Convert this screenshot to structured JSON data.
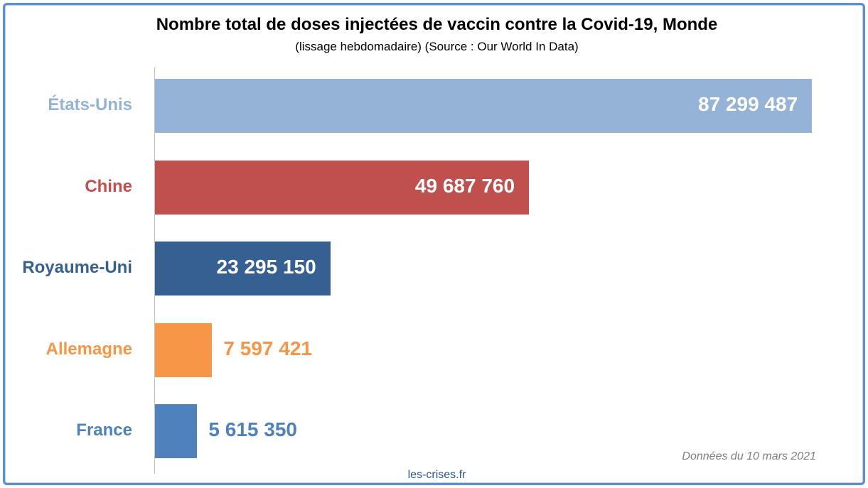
{
  "chart_data": {
    "type": "bar",
    "orientation": "horizontal",
    "title": "Nombre total de doses injectées de vaccin contre la Covid-19, Monde",
    "subtitle": "(lissage hebdomadaire) (Source : Our World In Data)",
    "categories": [
      "États-Unis",
      "Chine",
      "Royaume-Uni",
      "Allemagne",
      "France"
    ],
    "values": [
      87299487,
      49687760,
      23295150,
      7597421,
      5615350
    ],
    "value_labels": [
      "87 299 487",
      "49 687 760",
      "23 295 150",
      "7 597 421",
      "5 615 350"
    ],
    "colors": [
      "#95b3d7",
      "#c0504d",
      "#376092",
      "#f79646",
      "#4f81bd"
    ],
    "label_colors": [
      "#95b3d7",
      "#c0504d",
      "#376092",
      "#f79646",
      "#4f81bd"
    ],
    "value_label_colors": [
      "#ffffff",
      "#ffffff",
      "#ffffff",
      "#f79646",
      "#4f81bd"
    ],
    "value_label_inside": [
      true,
      true,
      true,
      false,
      false
    ],
    "xlim": [
      0,
      87299487
    ],
    "grid": false,
    "note": "Données du 10 mars 2021",
    "footer": "les-crises.fr"
  }
}
